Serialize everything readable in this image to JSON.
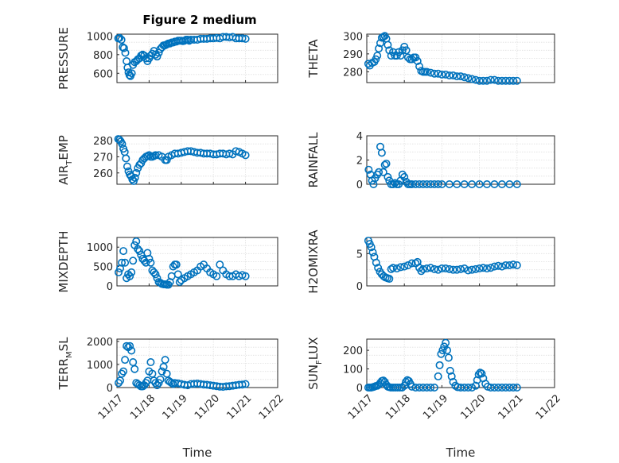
{
  "figure_title": "Figure 2 medium",
  "colors": {
    "marker": "#0072bd",
    "axis": "#262626",
    "grid": "#dfdfdf",
    "background": "#ffffff"
  },
  "chart_data": [
    {
      "type": "scatter",
      "ylabel_parts": [
        "PRESSURE"
      ],
      "yticks": [
        "600",
        "800",
        "1000"
      ],
      "xticks": [
        "11/17",
        "11/18",
        "11/19",
        "11/20",
        "11/21",
        "11/22"
      ],
      "xlabel": "",
      "title": "Figure 2 medium",
      "xlim": [
        0,
        5
      ],
      "ylim": [
        500,
        1020
      ],
      "x": [
        0.04,
        0.08,
        0.14,
        0.18,
        0.22,
        0.26,
        0.3,
        0.33,
        0.36,
        0.39,
        0.42,
        0.46,
        0.5,
        0.55,
        0.6,
        0.65,
        0.7,
        0.75,
        0.8,
        0.85,
        0.9,
        0.95,
        1.0,
        1.05,
        1.1,
        1.15,
        1.2,
        1.25,
        1.3,
        1.35,
        1.4,
        1.45,
        1.5,
        1.55,
        1.6,
        1.65,
        1.7,
        1.75,
        1.8,
        1.85,
        1.9,
        1.95,
        2.0,
        2.05,
        2.1,
        2.15,
        2.2,
        2.25,
        2.3,
        2.4,
        2.5,
        2.6,
        2.7,
        2.8,
        2.9,
        3.0,
        3.1,
        3.2,
        3.3,
        3.4,
        3.5,
        3.6,
        3.7,
        3.8,
        3.9,
        4.0
      ],
      "values": [
        975,
        980,
        960,
        880,
        870,
        820,
        730,
        660,
        610,
        580,
        570,
        600,
        690,
        720,
        730,
        750,
        760,
        790,
        800,
        790,
        760,
        730,
        760,
        790,
        810,
        840,
        800,
        780,
        820,
        860,
        880,
        900,
        900,
        910,
        920,
        920,
        930,
        930,
        940,
        940,
        950,
        950,
        950,
        945,
        950,
        960,
        960,
        950,
        960,
        960,
        960,
        970,
        970,
        970,
        975,
        975,
        980,
        975,
        990,
        990,
        985,
        990,
        975,
        975,
        975,
        970
      ]
    },
    {
      "type": "scatter",
      "ylabel_parts": [
        "THETA"
      ],
      "yticks": [
        "280",
        "290",
        "300"
      ],
      "xticks": [
        "11/17",
        "11/18",
        "11/19",
        "11/20",
        "11/21",
        "11/22"
      ],
      "xlabel": "",
      "xlim": [
        0,
        5
      ],
      "ylim": [
        274,
        301
      ],
      "x": [
        0.04,
        0.08,
        0.14,
        0.2,
        0.24,
        0.28,
        0.32,
        0.36,
        0.4,
        0.44,
        0.48,
        0.52,
        0.56,
        0.6,
        0.65,
        0.7,
        0.75,
        0.8,
        0.85,
        0.9,
        0.95,
        1.0,
        1.05,
        1.1,
        1.15,
        1.2,
        1.25,
        1.3,
        1.35,
        1.4,
        1.45,
        1.5,
        1.55,
        1.6,
        1.7,
        1.8,
        1.9,
        2.0,
        2.1,
        2.2,
        2.3,
        2.4,
        2.5,
        2.6,
        2.7,
        2.8,
        2.9,
        3.0,
        3.1,
        3.2,
        3.3,
        3.4,
        3.5,
        3.6,
        3.7,
        3.8,
        3.9,
        4.0
      ],
      "values": [
        284.5,
        283.5,
        285,
        285.5,
        287,
        289,
        293,
        296,
        299,
        299.5,
        300,
        298.5,
        295,
        292,
        289,
        291,
        289,
        289,
        291,
        289,
        292,
        294,
        292,
        288,
        287,
        287,
        288,
        288,
        286,
        283,
        280.5,
        280,
        280,
        280,
        279.5,
        279,
        279,
        278.5,
        278.5,
        278,
        278,
        277.5,
        277.5,
        277,
        276.5,
        276,
        275.5,
        275,
        275,
        275,
        275.5,
        275.5,
        275,
        275,
        275,
        275,
        275,
        275
      ]
    },
    {
      "type": "scatter",
      "ylabel_parts": [
        "AIR",
        "T",
        "EMP"
      ],
      "yticks": [
        "260",
        "270",
        "280"
      ],
      "xticks": [
        "11/17",
        "11/18",
        "11/19",
        "11/20",
        "11/21",
        "11/22"
      ],
      "xlabel": "",
      "xlim": [
        0,
        5
      ],
      "ylim": [
        253,
        283
      ],
      "x": [
        0.04,
        0.08,
        0.12,
        0.16,
        0.2,
        0.24,
        0.28,
        0.32,
        0.36,
        0.4,
        0.44,
        0.48,
        0.52,
        0.56,
        0.6,
        0.65,
        0.7,
        0.75,
        0.8,
        0.85,
        0.9,
        0.95,
        1.0,
        1.05,
        1.1,
        1.15,
        1.2,
        1.3,
        1.4,
        1.5,
        1.55,
        1.6,
        1.7,
        1.8,
        1.9,
        2.0,
        2.1,
        2.2,
        2.3,
        2.4,
        2.5,
        2.6,
        2.7,
        2.8,
        2.9,
        3.0,
        3.1,
        3.2,
        3.3,
        3.4,
        3.5,
        3.6,
        3.7,
        3.8,
        3.9,
        4.0
      ],
      "values": [
        281,
        280.5,
        279.5,
        278,
        275,
        273,
        269,
        264,
        261,
        259,
        258,
        256,
        255,
        257,
        260,
        263,
        265,
        266,
        268,
        269,
        270,
        270.5,
        271,
        270,
        270,
        270.5,
        271,
        271,
        270,
        268,
        268,
        270,
        271,
        272,
        272,
        272.5,
        273,
        273.5,
        273.5,
        273,
        272.5,
        272.5,
        272,
        272,
        272,
        271.5,
        271.5,
        272,
        272,
        271.5,
        272,
        271.5,
        273.5,
        273,
        272,
        271
      ]
    },
    {
      "type": "scatter",
      "ylabel_parts": [
        "RAINFALL"
      ],
      "yticks": [
        "0",
        "2",
        "4"
      ],
      "xticks": [
        "11/17",
        "11/18",
        "11/19",
        "11/20",
        "11/21",
        "11/22"
      ],
      "xlabel": "",
      "xlim": [
        0,
        5
      ],
      "ylim": [
        0,
        4
      ],
      "x": [
        0.05,
        0.1,
        0.14,
        0.18,
        0.22,
        0.28,
        0.32,
        0.36,
        0.4,
        0.44,
        0.48,
        0.52,
        0.56,
        0.6,
        0.65,
        0.7,
        0.75,
        0.8,
        0.85,
        0.9,
        0.95,
        1.0,
        1.05,
        1.1,
        1.15,
        1.2,
        1.3,
        1.4,
        1.5,
        1.6,
        1.7,
        1.8,
        1.9,
        2.0,
        2.2,
        2.4,
        2.6,
        2.8,
        3.0,
        3.2,
        3.4,
        3.6,
        3.8,
        4.0
      ],
      "values": [
        1.2,
        0.8,
        0.3,
        0.0,
        0.5,
        0.8,
        1.0,
        3.1,
        2.6,
        1.0,
        1.6,
        1.7,
        0.6,
        0.3,
        0.0,
        0.0,
        0.1,
        0.0,
        0.0,
        0.3,
        0.8,
        0.6,
        0.2,
        0.0,
        0.0,
        0.0,
        0.0,
        0.0,
        0.0,
        0.0,
        0.0,
        0.0,
        0.0,
        0.0,
        0.0,
        0.0,
        0.0,
        0.0,
        0.0,
        0.0,
        0.0,
        0.0,
        0.0,
        0.0
      ]
    },
    {
      "type": "scatter",
      "ylabel_parts": [
        "MIXDEPTH"
      ],
      "yticks": [
        "0",
        "500",
        "1000"
      ],
      "xticks": [
        "11/17",
        "11/18",
        "11/19",
        "11/20",
        "11/21",
        "11/22"
      ],
      "xlabel": "",
      "xlim": [
        0,
        5
      ],
      "ylim": [
        0,
        1250
      ],
      "x": [
        0.05,
        0.1,
        0.15,
        0.2,
        0.25,
        0.3,
        0.35,
        0.4,
        0.45,
        0.5,
        0.55,
        0.6,
        0.65,
        0.7,
        0.75,
        0.8,
        0.85,
        0.9,
        0.95,
        1.0,
        1.05,
        1.1,
        1.15,
        1.2,
        1.25,
        1.3,
        1.35,
        1.4,
        1.45,
        1.5,
        1.55,
        1.6,
        1.65,
        1.7,
        1.75,
        1.8,
        1.85,
        1.9,
        1.95,
        2.0,
        2.1,
        2.2,
        2.3,
        2.4,
        2.5,
        2.6,
        2.7,
        2.8,
        2.9,
        3.0,
        3.1,
        3.2,
        3.3,
        3.4,
        3.5,
        3.6,
        3.7,
        3.8,
        3.9,
        4.0
      ],
      "values": [
        350,
        450,
        600,
        900,
        600,
        200,
        300,
        250,
        350,
        650,
        1050,
        1150,
        950,
        900,
        800,
        700,
        650,
        600,
        850,
        700,
        600,
        400,
        350,
        300,
        200,
        100,
        80,
        50,
        40,
        40,
        30,
        30,
        100,
        250,
        500,
        550,
        550,
        300,
        100,
        150,
        200,
        250,
        300,
        350,
        400,
        500,
        550,
        450,
        350,
        300,
        250,
        550,
        400,
        300,
        250,
        250,
        300,
        250,
        280,
        250
      ]
    },
    {
      "type": "scatter",
      "ylabel_parts": [
        "H2OMIXRA"
      ],
      "yticks": [
        "0",
        "5"
      ],
      "xticks": [
        "11/17",
        "11/18",
        "11/19",
        "11/20",
        "11/21",
        "11/22"
      ],
      "xlabel": "",
      "xlim": [
        0,
        5
      ],
      "ylim": [
        0,
        7.5
      ],
      "x": [
        0.04,
        0.08,
        0.12,
        0.16,
        0.2,
        0.25,
        0.3,
        0.35,
        0.4,
        0.45,
        0.5,
        0.55,
        0.6,
        0.65,
        0.7,
        0.8,
        0.9,
        1.0,
        1.1,
        1.2,
        1.3,
        1.35,
        1.4,
        1.45,
        1.5,
        1.6,
        1.7,
        1.8,
        1.9,
        2.0,
        2.1,
        2.2,
        2.3,
        2.4,
        2.5,
        2.6,
        2.7,
        2.8,
        2.9,
        3.0,
        3.1,
        3.2,
        3.3,
        3.4,
        3.5,
        3.6,
        3.7,
        3.8,
        3.9,
        4.0
      ],
      "values": [
        7.0,
        6.5,
        6.0,
        5.2,
        4.5,
        3.6,
        2.8,
        2.2,
        1.8,
        1.5,
        1.3,
        1.2,
        1.1,
        2.6,
        2.8,
        2.7,
        2.9,
        3.0,
        3.2,
        3.5,
        3.5,
        3.7,
        2.8,
        2.3,
        2.6,
        2.7,
        2.8,
        2.6,
        2.5,
        2.7,
        2.7,
        2.6,
        2.5,
        2.5,
        2.6,
        2.7,
        2.4,
        2.5,
        2.6,
        2.7,
        2.8,
        2.7,
        2.8,
        3.0,
        3.1,
        3.0,
        3.2,
        3.2,
        3.3,
        3.2
      ]
    },
    {
      "type": "scatter",
      "ylabel_parts": [
        "TERR",
        "M",
        "SL"
      ],
      "yticks": [
        "0",
        "1000",
        "2000"
      ],
      "xticks": [
        "11/17",
        "11/18",
        "11/19",
        "11/20",
        "11/21",
        "11/22"
      ],
      "xlabel": "Time",
      "xlim": [
        0,
        5
      ],
      "ylim": [
        0,
        2100
      ],
      "x": [
        0.05,
        0.1,
        0.15,
        0.2,
        0.25,
        0.3,
        0.35,
        0.4,
        0.45,
        0.5,
        0.55,
        0.6,
        0.65,
        0.7,
        0.75,
        0.8,
        0.85,
        0.9,
        0.95,
        1.0,
        1.05,
        1.1,
        1.15,
        1.2,
        1.25,
        1.3,
        1.35,
        1.4,
        1.45,
        1.5,
        1.55,
        1.6,
        1.65,
        1.7,
        1.75,
        1.8,
        1.9,
        2.0,
        2.1,
        2.2,
        2.3,
        2.4,
        2.5,
        2.6,
        2.7,
        2.8,
        2.9,
        3.0,
        3.1,
        3.2,
        3.3,
        3.4,
        3.5,
        3.6,
        3.7,
        3.8,
        3.9,
        4.0
      ],
      "values": [
        200,
        300,
        600,
        700,
        1200,
        1800,
        1750,
        1800,
        1600,
        1100,
        800,
        200,
        150,
        100,
        50,
        50,
        100,
        200,
        300,
        700,
        1100,
        600,
        300,
        200,
        100,
        200,
        350,
        700,
        900,
        1200,
        600,
        300,
        250,
        200,
        150,
        200,
        180,
        150,
        120,
        100,
        150,
        160,
        170,
        150,
        130,
        120,
        100,
        80,
        60,
        40,
        30,
        50,
        60,
        80,
        100,
        120,
        130,
        150
      ]
    },
    {
      "type": "scatter",
      "ylabel_parts": [
        "SUN",
        "F",
        "LUX"
      ],
      "yticks": [
        "0",
        "100",
        "200"
      ],
      "xticks": [
        "11/17",
        "11/18",
        "11/19",
        "11/20",
        "11/21",
        "11/22"
      ],
      "xlabel": "Time",
      "xlim": [
        0,
        5
      ],
      "ylim": [
        0,
        260
      ],
      "x": [
        0.04,
        0.08,
        0.12,
        0.16,
        0.2,
        0.24,
        0.28,
        0.32,
        0.36,
        0.4,
        0.44,
        0.48,
        0.52,
        0.56,
        0.6,
        0.64,
        0.7,
        0.76,
        0.82,
        0.88,
        0.94,
        1.0,
        1.04,
        1.08,
        1.12,
        1.16,
        1.2,
        1.3,
        1.4,
        1.5,
        1.6,
        1.7,
        1.8,
        1.9,
        1.94,
        1.98,
        2.02,
        2.06,
        2.1,
        2.14,
        2.18,
        2.22,
        2.26,
        2.3,
        2.36,
        2.42,
        2.5,
        2.6,
        2.7,
        2.8,
        2.9,
        2.94,
        2.98,
        3.02,
        3.06,
        3.1,
        3.16,
        3.22,
        3.3,
        3.4,
        3.5,
        3.6,
        3.7,
        3.8,
        3.9,
        4.0
      ],
      "values": [
        0,
        0,
        0,
        2,
        5,
        8,
        10,
        15,
        25,
        35,
        38,
        30,
        15,
        5,
        2,
        0,
        0,
        0,
        0,
        0,
        0,
        10,
        30,
        40,
        35,
        20,
        5,
        0,
        0,
        0,
        0,
        0,
        0,
        60,
        120,
        180,
        200,
        220,
        240,
        200,
        160,
        90,
        60,
        30,
        10,
        2,
        0,
        0,
        0,
        0,
        10,
        40,
        70,
        80,
        75,
        50,
        20,
        5,
        0,
        0,
        0,
        0,
        0,
        0,
        0,
        0
      ]
    }
  ]
}
